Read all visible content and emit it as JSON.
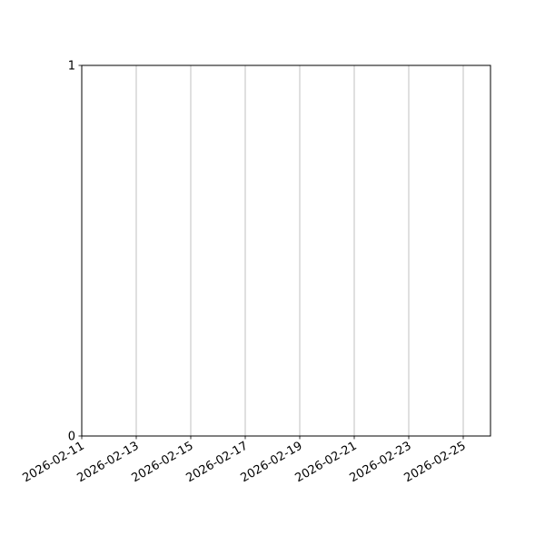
{
  "chart_data": {
    "type": "line",
    "title": "",
    "xlabel": "",
    "ylabel": "",
    "series": [],
    "x_axis": {
      "scale": "date",
      "xlim": [
        "2026-02-11",
        "2026-02-26"
      ],
      "tick_labels": [
        "2026-02-11",
        "2026-02-13",
        "2026-02-15",
        "2026-02-17",
        "2026-02-19",
        "2026-02-21",
        "2026-02-23",
        "2026-02-25"
      ],
      "tick_label_rotation_deg": 30
    },
    "y_axis": {
      "ylim": [
        0,
        1
      ],
      "tick_labels": [
        "0",
        "1"
      ]
    },
    "grid": {
      "x": true,
      "y": false,
      "color": "#b0b0b0"
    }
  }
}
